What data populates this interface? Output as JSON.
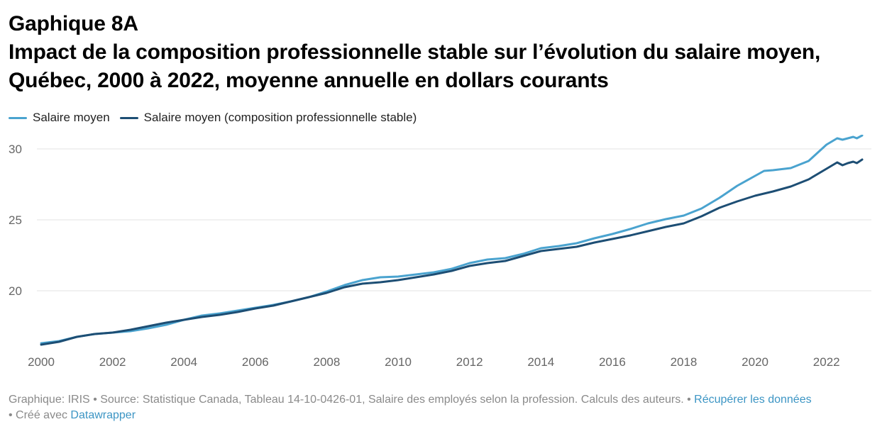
{
  "header": {
    "kicker": "Gaphique 8A",
    "title": "Impact de la composition professionnelle stable sur l’évolution du salaire moyen, Québec, 2000 à 2022, moyenne annuelle en dollars courants"
  },
  "footer": {
    "credit": "Graphique: IRIS",
    "source": "• Source: Statistique Canada, Tableau 14-10-0426-01, Salaire des employés selon la profession. Calculs des auteurs. •",
    "download_link": "Récupérer les données",
    "made_with": "• Créé avec",
    "datawrapper_link": "Datawrapper"
  },
  "colors": {
    "series1": "#4aa3cf",
    "series2": "#1d4e74",
    "grid": "#e3e3e3",
    "link": "#3c95c4"
  },
  "chart_data": {
    "type": "line",
    "xlim": [
      2000,
      2023
    ],
    "ylim": [
      16,
      31
    ],
    "y_ticks": [
      20,
      25,
      30
    ],
    "y_tick_labels": [
      "20",
      "25",
      "30"
    ],
    "x_ticks": [
      2000,
      2002,
      2004,
      2006,
      2008,
      2010,
      2012,
      2014,
      2016,
      2018,
      2020,
      2022
    ],
    "x_tick_labels": [
      "2000",
      "2002",
      "2004",
      "2006",
      "2008",
      "2010",
      "2012",
      "2014",
      "2016",
      "2018",
      "2020",
      "2022"
    ],
    "grid": "horizontal",
    "legend_position": "top-left",
    "series": [
      {
        "name": "Salaire moyen",
        "points": [
          [
            2000.0,
            16.3
          ],
          [
            2000.5,
            16.45
          ],
          [
            2001.0,
            16.75
          ],
          [
            2001.5,
            16.95
          ],
          [
            2002.0,
            17.05
          ],
          [
            2002.5,
            17.15
          ],
          [
            2003.0,
            17.35
          ],
          [
            2003.5,
            17.6
          ],
          [
            2004.0,
            17.95
          ],
          [
            2004.5,
            18.25
          ],
          [
            2005.0,
            18.4
          ],
          [
            2005.5,
            18.6
          ],
          [
            2006.0,
            18.8
          ],
          [
            2006.5,
            19.0
          ],
          [
            2007.0,
            19.25
          ],
          [
            2007.5,
            19.55
          ],
          [
            2008.0,
            19.95
          ],
          [
            2008.5,
            20.4
          ],
          [
            2009.0,
            20.75
          ],
          [
            2009.5,
            20.95
          ],
          [
            2010.0,
            21.0
          ],
          [
            2010.5,
            21.15
          ],
          [
            2011.0,
            21.3
          ],
          [
            2011.5,
            21.55
          ],
          [
            2012.0,
            21.95
          ],
          [
            2012.5,
            22.2
          ],
          [
            2013.0,
            22.3
          ],
          [
            2013.5,
            22.6
          ],
          [
            2014.0,
            23.0
          ],
          [
            2014.5,
            23.15
          ],
          [
            2015.0,
            23.35
          ],
          [
            2015.5,
            23.7
          ],
          [
            2016.0,
            24.0
          ],
          [
            2016.5,
            24.35
          ],
          [
            2017.0,
            24.75
          ],
          [
            2017.5,
            25.05
          ],
          [
            2018.0,
            25.3
          ],
          [
            2018.5,
            25.8
          ],
          [
            2019.0,
            26.55
          ],
          [
            2019.5,
            27.4
          ],
          [
            2020.0,
            28.1
          ],
          [
            2020.25,
            28.45
          ],
          [
            2020.5,
            28.5
          ],
          [
            2021.0,
            28.65
          ],
          [
            2021.5,
            29.15
          ],
          [
            2022.0,
            30.3
          ],
          [
            2022.3,
            30.75
          ],
          [
            2022.45,
            30.65
          ],
          [
            2022.6,
            30.75
          ],
          [
            2022.75,
            30.85
          ],
          [
            2022.85,
            30.75
          ],
          [
            2023.0,
            30.95
          ]
        ]
      },
      {
        "name": "Salaire moyen (composition professionnelle stable)",
        "points": [
          [
            2000.0,
            16.2
          ],
          [
            2000.5,
            16.4
          ],
          [
            2001.0,
            16.75
          ],
          [
            2001.5,
            16.95
          ],
          [
            2002.0,
            17.05
          ],
          [
            2002.5,
            17.25
          ],
          [
            2003.0,
            17.5
          ],
          [
            2003.5,
            17.75
          ],
          [
            2004.0,
            17.95
          ],
          [
            2004.5,
            18.15
          ],
          [
            2005.0,
            18.3
          ],
          [
            2005.5,
            18.5
          ],
          [
            2006.0,
            18.75
          ],
          [
            2006.5,
            18.95
          ],
          [
            2007.0,
            19.25
          ],
          [
            2007.5,
            19.55
          ],
          [
            2008.0,
            19.85
          ],
          [
            2008.5,
            20.25
          ],
          [
            2009.0,
            20.5
          ],
          [
            2009.5,
            20.6
          ],
          [
            2010.0,
            20.75
          ],
          [
            2010.5,
            20.95
          ],
          [
            2011.0,
            21.15
          ],
          [
            2011.5,
            21.4
          ],
          [
            2012.0,
            21.75
          ],
          [
            2012.5,
            21.95
          ],
          [
            2013.0,
            22.1
          ],
          [
            2013.5,
            22.45
          ],
          [
            2014.0,
            22.8
          ],
          [
            2014.5,
            22.95
          ],
          [
            2015.0,
            23.1
          ],
          [
            2015.5,
            23.4
          ],
          [
            2016.0,
            23.65
          ],
          [
            2016.5,
            23.9
          ],
          [
            2017.0,
            24.2
          ],
          [
            2017.5,
            24.5
          ],
          [
            2018.0,
            24.75
          ],
          [
            2018.5,
            25.25
          ],
          [
            2019.0,
            25.85
          ],
          [
            2019.5,
            26.3
          ],
          [
            2020.0,
            26.7
          ],
          [
            2020.5,
            27.0
          ],
          [
            2021.0,
            27.35
          ],
          [
            2021.5,
            27.85
          ],
          [
            2022.0,
            28.6
          ],
          [
            2022.3,
            29.05
          ],
          [
            2022.45,
            28.85
          ],
          [
            2022.6,
            29.0
          ],
          [
            2022.75,
            29.1
          ],
          [
            2022.85,
            29.0
          ],
          [
            2023.0,
            29.25
          ]
        ]
      }
    ]
  }
}
